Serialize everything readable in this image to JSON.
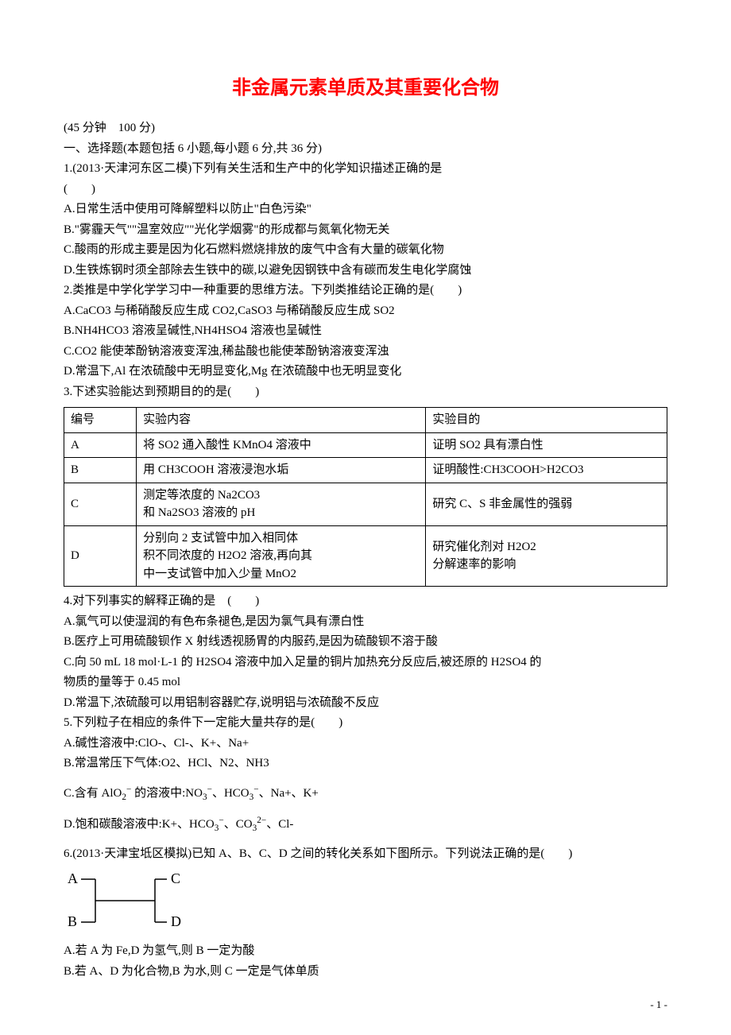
{
  "title": "非金属元素单质及其重要化合物",
  "lines": {
    "time": "(45 分钟　100 分)",
    "sec1": "一、选择题(本题包括 6 小题,每小题 6 分,共 36 分)",
    "q1": "1.(2013·天津河东区二模)下列有关生活和生产中的化学知识描述正确的是",
    "q1paren": "(　　)",
    "q1a": "A.日常生活中使用可降解塑料以防止\"白色污染\"",
    "q1b": "B.\"雾霾天气\"\"温室效应\"\"光化学烟雾\"的形成都与氮氧化物无关",
    "q1c": "C.酸雨的形成主要是因为化石燃料燃烧排放的废气中含有大量的碳氧化物",
    "q1d": "D.生铁炼钢时须全部除去生铁中的碳,以避免因钢铁中含有碳而发生电化学腐蚀",
    "q2": "2.类推是中学化学学习中一种重要的思维方法。下列类推结论正确的是(　　)",
    "q2a": "A.CaCO3 与稀硝酸反应生成 CO2,CaSO3 与稀硝酸反应生成 SO2",
    "q2b": "B.NH4HCO3 溶液呈碱性,NH4HSO4 溶液也呈碱性",
    "q2c": "C.CO2 能使苯酚钠溶液变浑浊,稀盐酸也能使苯酚钠溶液变浑浊",
    "q2d": "D.常温下,Al 在浓硫酸中无明显变化,Mg 在浓硫酸中也无明显变化",
    "q3": "3.下述实验能达到预期目的的是(　　)",
    "q4": "4.对下列事实的解释正确的是　(　　)",
    "q4a": "A.氯气可以使湿润的有色布条褪色,是因为氯气具有漂白性",
    "q4b": "B.医疗上可用硫酸钡作 X 射线透视肠胃的内服药,是因为硫酸钡不溶于酸",
    "q4c1": "C.向 50 mL 18 mol·L-1 的 H2SO4 溶液中加入足量的铜片加热充分反应后,被还原的 H2SO4 的",
    "q4c2": "物质的量等于 0.45 mol",
    "q4d": "D.常温下,浓硫酸可以用铝制容器贮存,说明铝与浓硫酸不反应",
    "q5": "5.下列粒子在相应的条件下一定能大量共存的是(　　)",
    "q5a": "A.碱性溶液中:ClO-、Cl-、K+、Na+",
    "q5b": "B.常温常压下气体:O2、HCl、N2、NH3",
    "q5c_pre": "C.含有 Al",
    "q5c_mid1": " 的溶液中:N",
    "q5c_mid2": "、HC",
    "q5c_post": "、Na+、K+",
    "q5d_pre": "D.饱和碳酸溶液中:K+、HC",
    "q5d_mid": "、C",
    "q5d_post": "、Cl-",
    "q6": "6.(2013·天津宝坻区模拟)已知 A、B、C、D 之间的转化关系如下图所示。下列说法正确的是(　　)",
    "q6a": "A.若 A 为 Fe,D 为氢气,则 B 一定为酸",
    "q6b": "B.若 A、D 为化合物,B 为水,则 C 一定是气体单质"
  },
  "table": {
    "header": {
      "c1": "编号",
      "c2": "实验内容",
      "c3": "实验目的"
    },
    "rows": [
      {
        "c1": "A",
        "c2": "将 SO2 通入酸性 KMnO4 溶液中",
        "c3": "证明 SO2 具有漂白性"
      },
      {
        "c1": "B",
        "c2": "用 CH3COOH 溶液浸泡水垢",
        "c3": "证明酸性:CH3COOH>H2CO3"
      },
      {
        "c1": "C",
        "c2": "测定等浓度的 Na2CO3\n和 Na2SO3 溶液的 pH",
        "c3": "研究 C、S 非金属性的强弱"
      },
      {
        "c1": "D",
        "c2": "分别向 2 支试管中加入相同体\n积不同浓度的 H2O2 溶液,再向其\n中一支试管中加入少量 MnO2",
        "c3": "研究催化剂对 H2O2\n分解速率的影响"
      }
    ]
  },
  "diagram": {
    "labels": {
      "A": "A",
      "B": "B",
      "C": "C",
      "D": "D"
    },
    "fontsize": 18,
    "color": "#000000",
    "width": 180,
    "height": 80
  },
  "footer": "- 1 -"
}
